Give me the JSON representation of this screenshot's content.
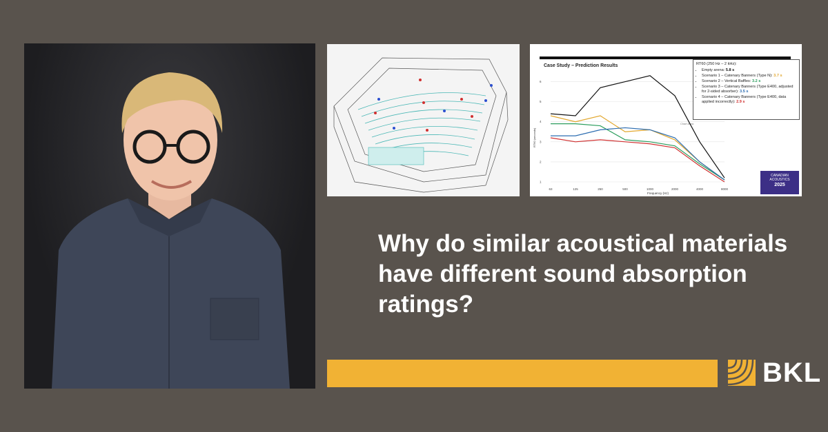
{
  "headline": "Why do similar acoustical materials have different sound absorption ratings?",
  "brand": {
    "name": "BKL",
    "colors": {
      "accent": "#f1b234",
      "background": "#59534d"
    }
  },
  "photo": {
    "icon": "person-portrait"
  },
  "model_image": {
    "icon": "arena-3d-model"
  },
  "chart_data": {
    "type": "line",
    "title": "Case Study – Prediction Results",
    "xlabel": "Frequency (Hz)",
    "ylabel": "RT60 (seconds)",
    "categories": [
      "63",
      "125",
      "250",
      "500",
      "1000",
      "2000",
      "4000",
      "8000"
    ],
    "yticks": [
      "1",
      "2",
      "3",
      "4",
      "5",
      "6"
    ],
    "ylim": [
      1,
      6.5
    ],
    "chart_area_label": "Chart Area",
    "series": [
      {
        "color": "#111111",
        "values": [
          4.4,
          4.3,
          5.7,
          6.0,
          6.3,
          5.3,
          3.0,
          1.2
        ]
      },
      {
        "color": "#e2a72e",
        "values": [
          4.3,
          4.0,
          4.3,
          3.5,
          3.6,
          3.1,
          2.0,
          1.1
        ]
      },
      {
        "color": "#2a9d5c",
        "values": [
          3.9,
          3.9,
          3.8,
          3.1,
          3.0,
          2.8,
          1.9,
          1.1
        ]
      },
      {
        "color": "#2b6cb0",
        "values": [
          3.3,
          3.3,
          3.6,
          3.7,
          3.6,
          3.2,
          2.0,
          1.1
        ]
      },
      {
        "color": "#d03030",
        "values": [
          3.2,
          3.0,
          3.1,
          3.0,
          2.9,
          2.7,
          1.8,
          1.0
        ]
      }
    ],
    "legend": {
      "header": "RT60 (250 Hz – 2 kHz):",
      "items": [
        {
          "text": "Empty arena:",
          "value": "5.8 s",
          "color": "#111111"
        },
        {
          "text": "Scenario 1 – Catenary Banners (Type N):",
          "value": "3.7 s",
          "color": "#e2a72e"
        },
        {
          "text": "Scenario 2 – Vertical Baffles:",
          "value": "3.2 s",
          "color": "#2a9d5c"
        },
        {
          "text": "Scenario 3 – Catenary Banners (Type E400, adjusted for 2-sided absorber):",
          "value": "3.5 s",
          "color": "#2b6cb0"
        },
        {
          "text": "Scenario 4 – Catenary Banners (Type E400, data applied incorrectly):",
          "value": "2.9 s",
          "color": "#d03030"
        }
      ]
    },
    "badge": {
      "line1": "CANADIAN",
      "line2": "ACOUSTICS",
      "line3": "2025"
    }
  }
}
